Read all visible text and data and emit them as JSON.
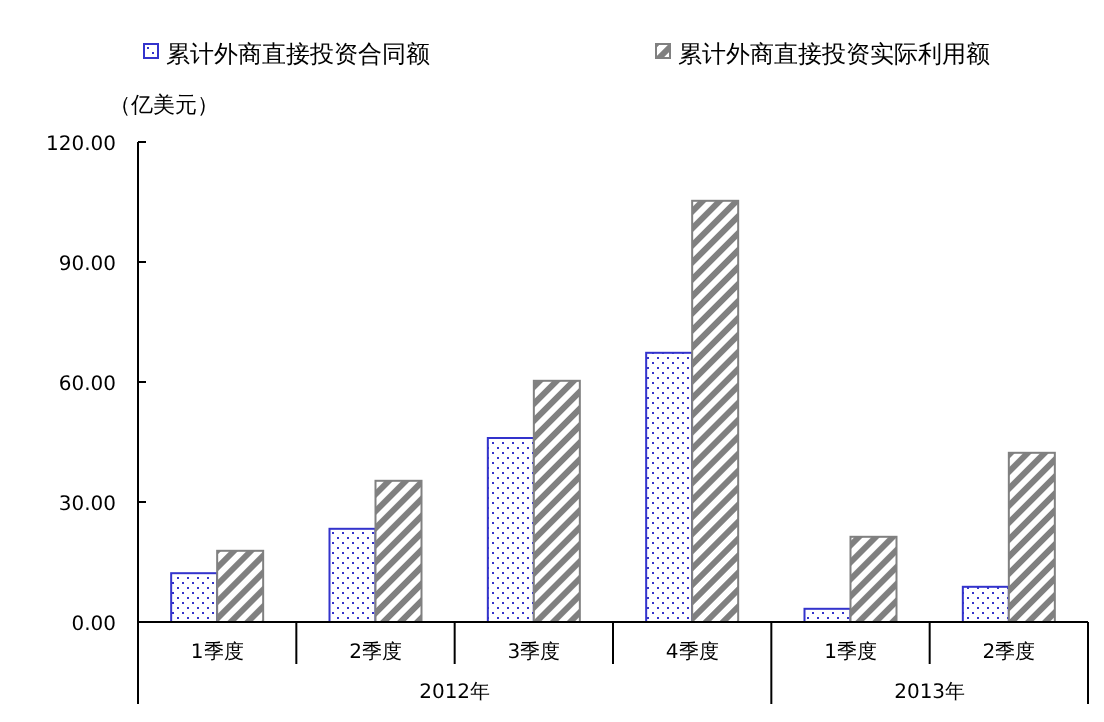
{
  "chart_data": {
    "type": "bar",
    "ylabel": "（亿美元）",
    "categories": [
      "1季度",
      "2季度",
      "3季度",
      "4季度",
      "1季度",
      "2季度"
    ],
    "series": [
      {
        "name": "累计外商直接投资合同额",
        "color": "#3333cc",
        "values": [
          12.2,
          23.3,
          46,
          67.3,
          3.3,
          8.8
        ]
      },
      {
        "name": "累计外商直接投资实际利用额",
        "color": "#808080",
        "values": [
          17.8,
          35.3,
          60.3,
          105.3,
          21.3,
          42.3
        ]
      }
    ],
    "ylim": [
      0,
      120
    ],
    "yticks": [
      {
        "value": 0,
        "label": "0.00"
      },
      {
        "value": 30,
        "label": "30.00"
      },
      {
        "value": 60,
        "label": "60.00"
      },
      {
        "value": 90,
        "label": "90.00"
      },
      {
        "value": 120,
        "label": "120.00"
      }
    ],
    "annotations": [
      "2012年",
      "2013年"
    ],
    "grid": false,
    "legend": "top"
  }
}
